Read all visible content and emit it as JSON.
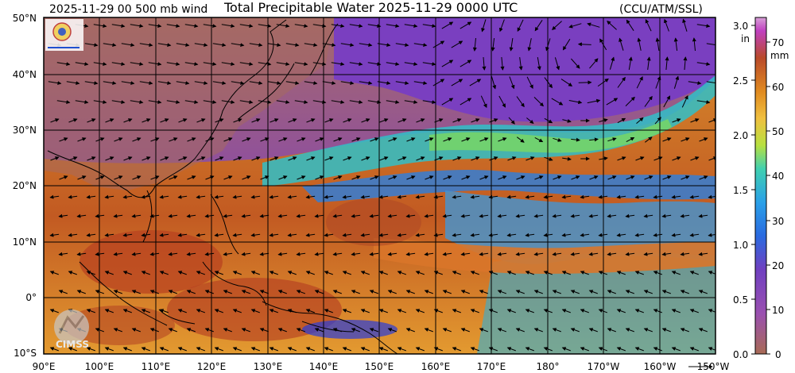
{
  "header": {
    "left_text": "2025-11-29 00 500 mb wind",
    "title": "Total Precipitable Water  2025-11-29 0000 UTC",
    "right_text": "(CCU/ATM/SSL)"
  },
  "map": {
    "lat_labels": [
      "50°N",
      "40°N",
      "30°N",
      "20°N",
      "10°N",
      "0°",
      "10°S"
    ],
    "lon_labels": [
      "90°E",
      "100°E",
      "110°E",
      "120°E",
      "130°E",
      "140°E",
      "150°E",
      "160°E",
      "170°E",
      "180°",
      "170°W",
      "160°W",
      "150°W"
    ],
    "logo_text": "CIMSS"
  },
  "colorbar": {
    "in_unit": "in",
    "mm_unit": "mm",
    "in_ticks": [
      "3.0",
      "2.5",
      "2.0",
      "1.5",
      "1.0",
      "0.5",
      "0.0"
    ],
    "mm_ticks": [
      "70",
      "60",
      "50",
      "40",
      "30",
      "20",
      "10",
      "0"
    ],
    "colors": [
      "#a86a55",
      "#b94a2a",
      "#e08a20",
      "#f0c040",
      "#40d0b0",
      "#2090e0",
      "#7040c0",
      "#c040c0",
      "#d08ad0"
    ]
  }
}
